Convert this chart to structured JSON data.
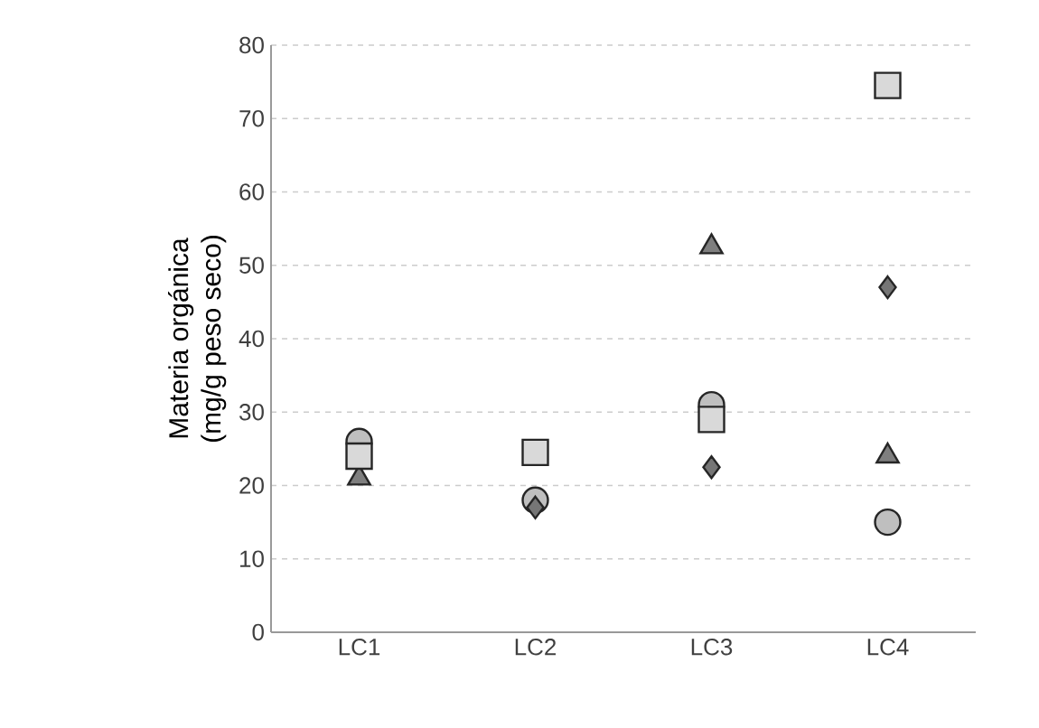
{
  "chart_data": {
    "type": "scatter",
    "ylabel": "Materia orgánica\n(mg/g peso seco)",
    "categories": [
      "LC1",
      "LC2",
      "LC3",
      "LC4"
    ],
    "ylim": [
      0,
      80
    ],
    "yticks": [
      0,
      10,
      20,
      30,
      40,
      50,
      60,
      70,
      80
    ],
    "grid": "y",
    "series": [
      {
        "color": "#7f7f7f",
        "marker": "triangle",
        "values": [
          21,
          null,
          52.5,
          24
        ]
      },
      {
        "color": "#bfbfbf",
        "marker": "circle",
        "values": [
          26,
          18,
          31,
          15
        ]
      },
      {
        "color": "#767676",
        "marker": "diamond",
        "values": [
          null,
          17,
          22.5,
          47
        ]
      },
      {
        "color": "#d9d9d9",
        "marker": "square",
        "values": [
          24,
          24.5,
          29,
          74.5
        ]
      }
    ]
  }
}
